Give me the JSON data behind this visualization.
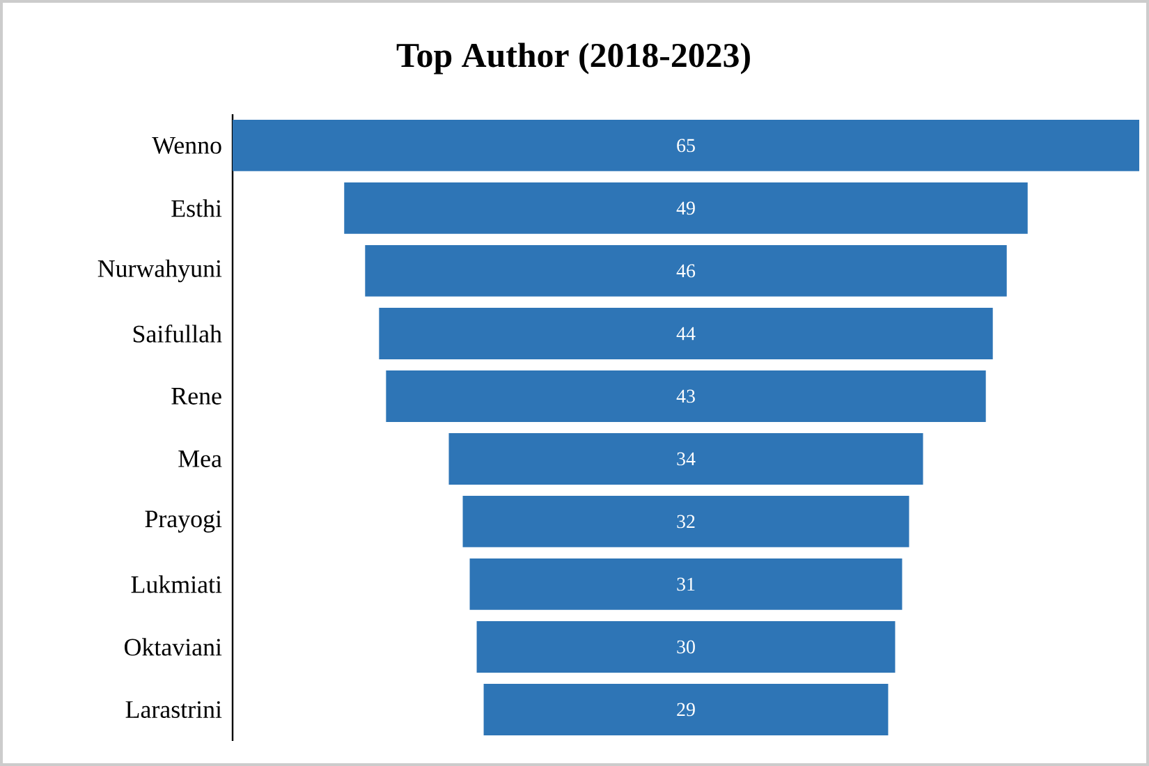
{
  "chart_data": {
    "type": "other",
    "title": "Top Author (2018-2023)",
    "categories": [
      "Wenno",
      "Esthi",
      "Nurwahyuni",
      "Saifullah",
      "Rene",
      "Mea",
      "Prayogi",
      "Lukmiati",
      "Oktaviani",
      "Larastrini"
    ],
    "values": [
      65,
      49,
      46,
      44,
      43,
      34,
      32,
      31,
      30,
      29
    ],
    "color": "#2e75b6",
    "data_labels": true
  }
}
